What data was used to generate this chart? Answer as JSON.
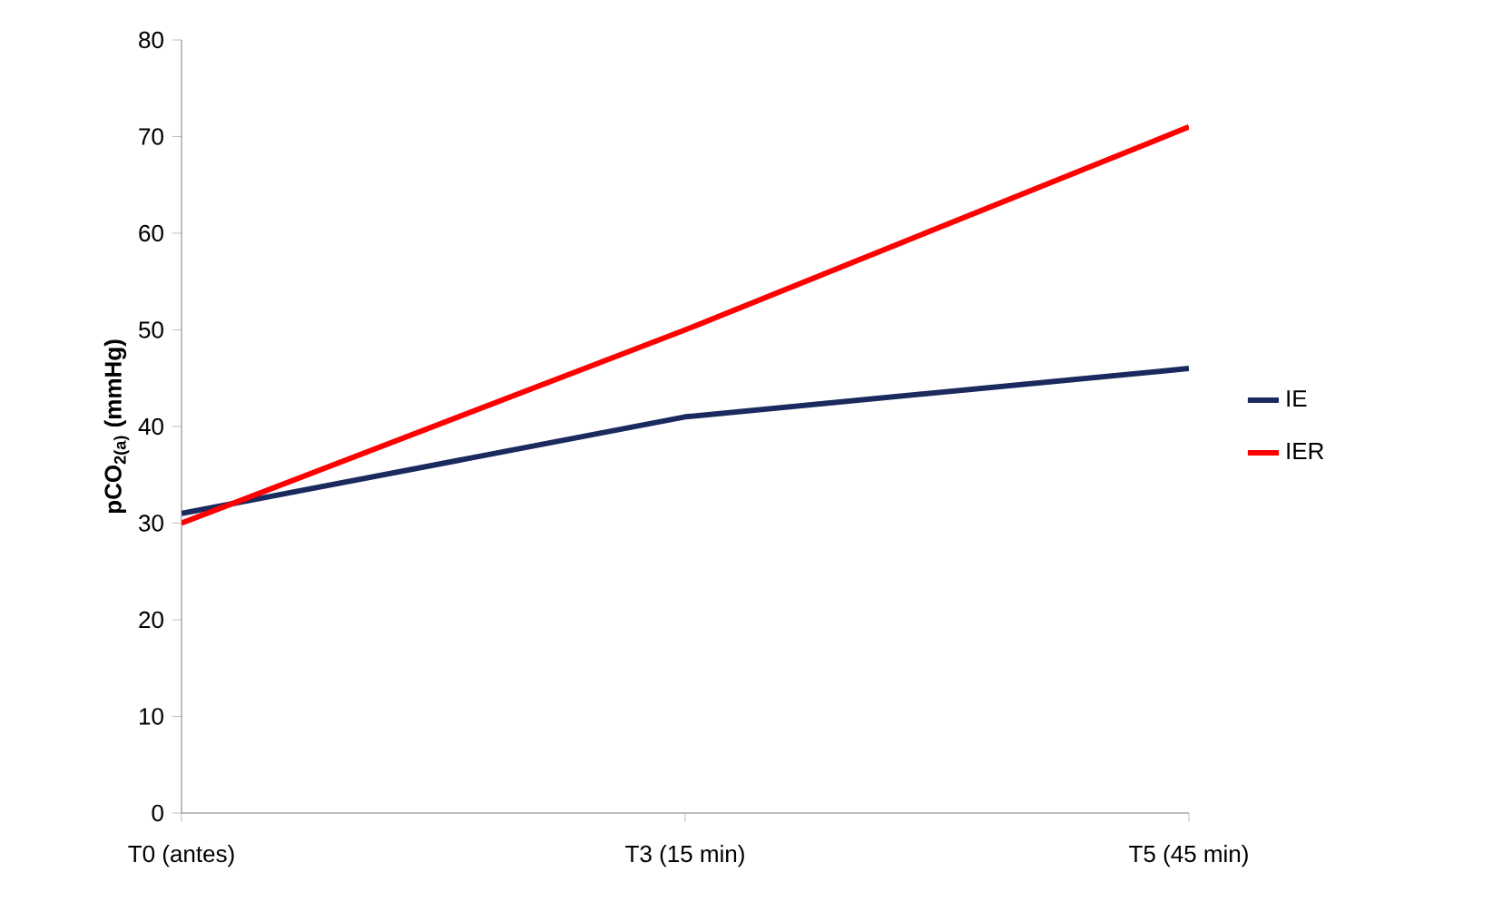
{
  "chart_data": {
    "type": "line",
    "ylabel": "pCO$_{2(a)}$ (mmHg)",
    "categories": [
      "T0 (antes)",
      "T3 (15 min)",
      "T5 (45 min)"
    ],
    "series": [
      {
        "name": "IE",
        "color": "#1b2a5e",
        "values": [
          31,
          41,
          46
        ]
      },
      {
        "name": "IER",
        "color": "#ff0000",
        "values": [
          30,
          50,
          71
        ]
      }
    ],
    "ylim": [
      0,
      80
    ],
    "yticks": [
      0,
      10,
      20,
      30,
      40,
      50,
      60,
      70,
      80
    ],
    "grid": false,
    "legend": "right",
    "marker": "none",
    "line_style": "solid"
  }
}
